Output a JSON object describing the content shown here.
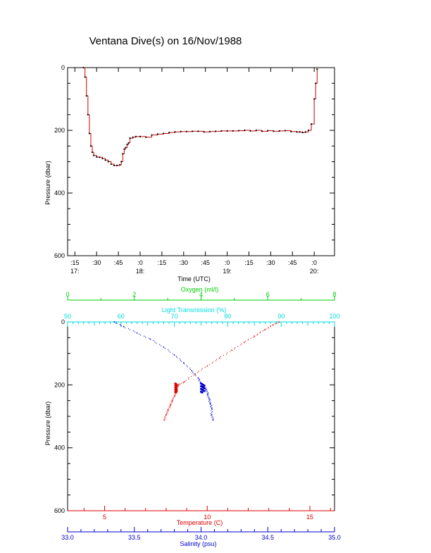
{
  "title": "Ventana Dive(s) on 16/Nov/1988",
  "colors": {
    "axis": "#000000",
    "pressure_trace": "#cc0000",
    "temperature": "#dd0000",
    "salinity": "#0000cc",
    "oxygen": "#00cc00",
    "transmission": "#00dddd"
  },
  "chart_data": [
    {
      "type": "line",
      "title": "Ventana Dive(s) on 16/Nov/1988",
      "xlabel": "Time (UTC)",
      "ylabel": "Pressure (dbar)",
      "xlim_minutes": [
        1030,
        1214
      ],
      "ylim": [
        600,
        0
      ],
      "y_ticks": [
        0,
        200,
        400,
        600
      ],
      "x_ticks": [
        {
          "m": 1035,
          "top": ":15",
          "bottom": "17:"
        },
        {
          "m": 1050,
          "top": ":30",
          "bottom": ""
        },
        {
          "m": 1065,
          "top": ":45",
          "bottom": ""
        },
        {
          "m": 1080,
          "top": ":0",
          "bottom": "18:"
        },
        {
          "m": 1095,
          "top": ":15",
          "bottom": ""
        },
        {
          "m": 1110,
          "top": ":30",
          "bottom": ""
        },
        {
          "m": 1125,
          "top": ":45",
          "bottom": ""
        },
        {
          "m": 1140,
          "top": ":0",
          "bottom": "19:"
        },
        {
          "m": 1155,
          "top": ":15",
          "bottom": ""
        },
        {
          "m": 1170,
          "top": ":30",
          "bottom": ""
        },
        {
          "m": 1185,
          "top": ":45",
          "bottom": ""
        },
        {
          "m": 1200,
          "top": ":0",
          "bottom": "20:"
        }
      ],
      "series": [
        {
          "x_minutes": [
            1041,
            1042,
            1043,
            1044,
            1045,
            1046,
            1047,
            1048,
            1050,
            1052,
            1054,
            1056,
            1058,
            1060,
            1062,
            1064,
            1066,
            1067,
            1068,
            1069,
            1070,
            1071,
            1072,
            1073,
            1075,
            1077,
            1080,
            1084,
            1088,
            1092,
            1096,
            1100,
            1104,
            1108,
            1112,
            1116,
            1120,
            1124,
            1128,
            1132,
            1136,
            1140,
            1144,
            1148,
            1152,
            1156,
            1160,
            1164,
            1168,
            1172,
            1176,
            1180,
            1184,
            1188,
            1190,
            1192,
            1194,
            1196,
            1198,
            1200,
            1201,
            1202
          ],
          "pressure": [
            0,
            30,
            90,
            150,
            210,
            250,
            270,
            280,
            285,
            286,
            290,
            295,
            300,
            308,
            312,
            312,
            310,
            300,
            275,
            260,
            255,
            245,
            240,
            225,
            222,
            220,
            220,
            222,
            215,
            212,
            210,
            207,
            205,
            204,
            204,
            203,
            203,
            205,
            204,
            203,
            202,
            202,
            202,
            201,
            200,
            202,
            200,
            203,
            201,
            203,
            202,
            201,
            204,
            205,
            205,
            207,
            205,
            200,
            180,
            100,
            50,
            5
          ]
        }
      ]
    },
    {
      "type": "scatter",
      "ylabel": "Pressure (dbar)",
      "ylim": [
        600,
        0
      ],
      "y_ticks": [
        0,
        200,
        400,
        600
      ],
      "axes": {
        "oxygen": {
          "label": "Oxygen (ml/l)",
          "range": [
            0,
            8
          ],
          "ticks": [
            0,
            2,
            4,
            6,
            8
          ]
        },
        "transmission": {
          "label": "Light Transmission (%)",
          "range": [
            50,
            100
          ],
          "ticks": [
            50,
            60,
            70,
            80,
            90,
            100
          ]
        },
        "temperature": {
          "label": "Temperature (C)",
          "range": [
            3.2,
            16.2
          ],
          "ticks": [
            5,
            10,
            15
          ]
        },
        "salinity": {
          "label": "Salinity (psu)",
          "range": [
            33.0,
            35.0
          ],
          "ticks": [
            "33.0",
            "33.5",
            "34.0",
            "34.5",
            "35.0"
          ]
        }
      },
      "series": [
        {
          "name": "Temperature",
          "values": [
            13.5,
            13.2,
            12.8,
            12.3,
            11.8,
            11.2,
            10.6,
            10.0,
            9.4,
            8.9,
            8.6,
            8.5,
            8.5,
            8.4,
            8.3,
            8.2,
            8.1,
            8.0,
            7.9
          ],
          "pressure": [
            0,
            10,
            25,
            45,
            65,
            90,
            115,
            140,
            165,
            190,
            200,
            210,
            220,
            235,
            250,
            265,
            280,
            295,
            312
          ]
        },
        {
          "name": "Salinity",
          "values": [
            33.35,
            33.42,
            33.52,
            33.62,
            33.72,
            33.8,
            33.87,
            33.93,
            33.98,
            34.0,
            34.02,
            34.04,
            34.05,
            34.06,
            34.07,
            34.08,
            34.08,
            34.09
          ],
          "pressure": [
            0,
            15,
            35,
            55,
            80,
            105,
            130,
            155,
            180,
            195,
            205,
            215,
            230,
            245,
            260,
            275,
            295,
            312
          ]
        }
      ]
    }
  ]
}
